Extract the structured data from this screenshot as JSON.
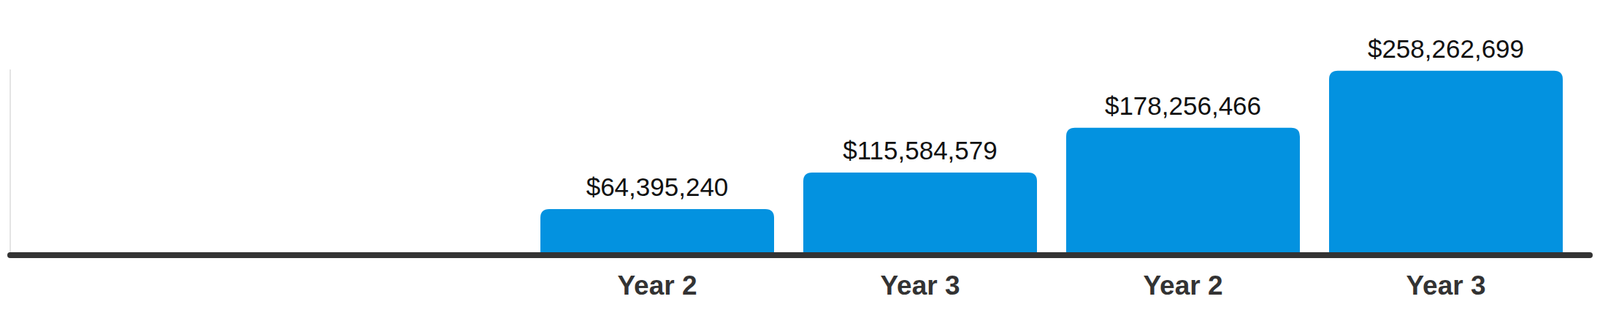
{
  "chart_data": {
    "type": "bar",
    "categories": [
      "Year 2",
      "Year 3",
      "Year 2",
      "Year 3"
    ],
    "values": [
      64395240,
      115584579,
      178256466,
      258262699
    ],
    "value_labels": [
      "$64,395,240",
      "$115,584,579",
      "$178,256,466",
      "$258,262,699"
    ],
    "color": "#0392e0",
    "ylim": [
      0,
      260000000
    ],
    "data_labels": true,
    "tick_labels": "x",
    "grid": false
  }
}
